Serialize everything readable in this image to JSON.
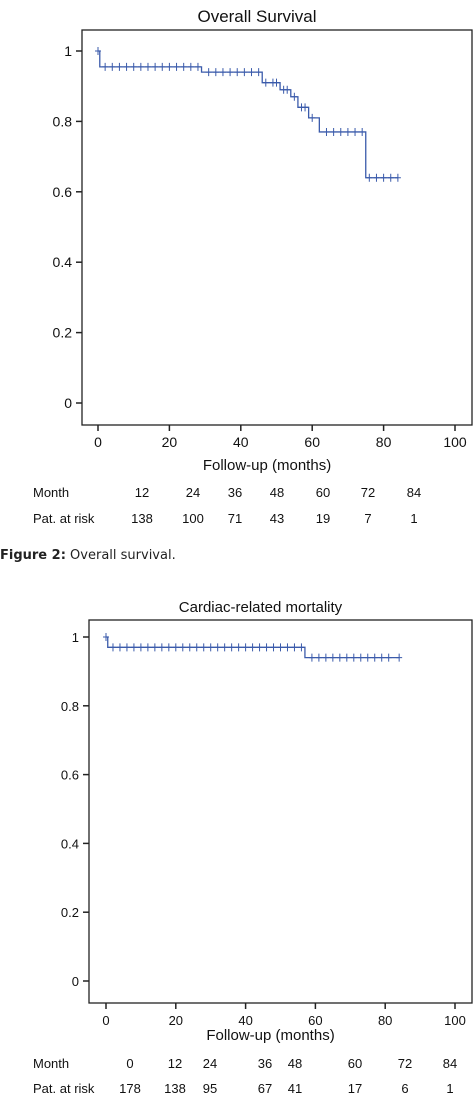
{
  "caption": {
    "label": "Figure 2:",
    "text": "Overall survival."
  },
  "chart_data": [
    {
      "type": "line",
      "title": "Overall Survival",
      "xlabel": "Follow-up (months)",
      "ylabel": "",
      "xlim": [
        0,
        100
      ],
      "ylim": [
        0,
        1
      ],
      "x_ticks": [
        0,
        20,
        40,
        60,
        80,
        100
      ],
      "y_ticks": [
        0,
        0.2,
        0.4,
        0.6,
        0.8,
        1
      ],
      "y_tick_labels": [
        "0",
        "0.2",
        "0.4",
        "0.6",
        "0.8",
        "1"
      ],
      "grid": false,
      "line_color": "#3b5bab",
      "series": [
        {
          "steps": [
            [
              0,
              1.0
            ],
            [
              0.5,
              0.955
            ],
            [
              29,
              0.94
            ],
            [
              46,
              0.91
            ],
            [
              51,
              0.89
            ],
            [
              54,
              0.87
            ],
            [
              56,
              0.84
            ],
            [
              59,
              0.81
            ],
            [
              62,
              0.77
            ],
            [
              75,
              0.64
            ],
            [
              84,
              0.64
            ]
          ],
          "censored": [
            0,
            2,
            4,
            6,
            8,
            10,
            12,
            14,
            16,
            18,
            20,
            22,
            24,
            26,
            28,
            31,
            33,
            35,
            37,
            39,
            41,
            43,
            45,
            47,
            49,
            50,
            52,
            53,
            55,
            57,
            58,
            60,
            64,
            66,
            68,
            70,
            72,
            74,
            76,
            78,
            80,
            82,
            84
          ]
        }
      ],
      "risk_table": {
        "row_labels": [
          "Month",
          "Pat. at risk"
        ],
        "months": [
          "12",
          "24",
          "36",
          "48",
          "60",
          "72",
          "84"
        ],
        "at_risk": [
          "138",
          "100",
          "71",
          "43",
          "19",
          "7",
          "1"
        ]
      }
    },
    {
      "type": "line",
      "title": "Cardiac-related mortality",
      "xlabel": "Follow-up (months)",
      "ylabel": "",
      "xlim": [
        0,
        100
      ],
      "ylim": [
        0,
        1
      ],
      "x_ticks": [
        0,
        20,
        40,
        60,
        80,
        100
      ],
      "y_ticks": [
        0,
        0.2,
        0.4,
        0.6,
        0.8,
        1
      ],
      "y_tick_labels": [
        "0",
        "0.2",
        "0.4",
        "0.6",
        "0.8",
        "1"
      ],
      "grid": false,
      "line_color": "#3b5bab",
      "series": [
        {
          "steps": [
            [
              0,
              1.0
            ],
            [
              0.5,
              0.97
            ],
            [
              57,
              0.94
            ],
            [
              84,
              0.94
            ]
          ],
          "censored": [
            0,
            2,
            4,
            6,
            8,
            10,
            12,
            14,
            16,
            18,
            20,
            22,
            24,
            26,
            28,
            30,
            32,
            34,
            36,
            38,
            40,
            42,
            44,
            46,
            48,
            50,
            52,
            54,
            56,
            59,
            61,
            63,
            65,
            67,
            69,
            71,
            73,
            75,
            77,
            79,
            81,
            84
          ]
        }
      ],
      "risk_table": {
        "row_labels": [
          "Month",
          "Pat. at risk"
        ],
        "months": [
          "0",
          "12",
          "24",
          "36",
          "48",
          "60",
          "72",
          "84"
        ],
        "at_risk": [
          "178",
          "138",
          "95",
          "67",
          "41",
          "17",
          "6",
          "1"
        ]
      }
    }
  ]
}
